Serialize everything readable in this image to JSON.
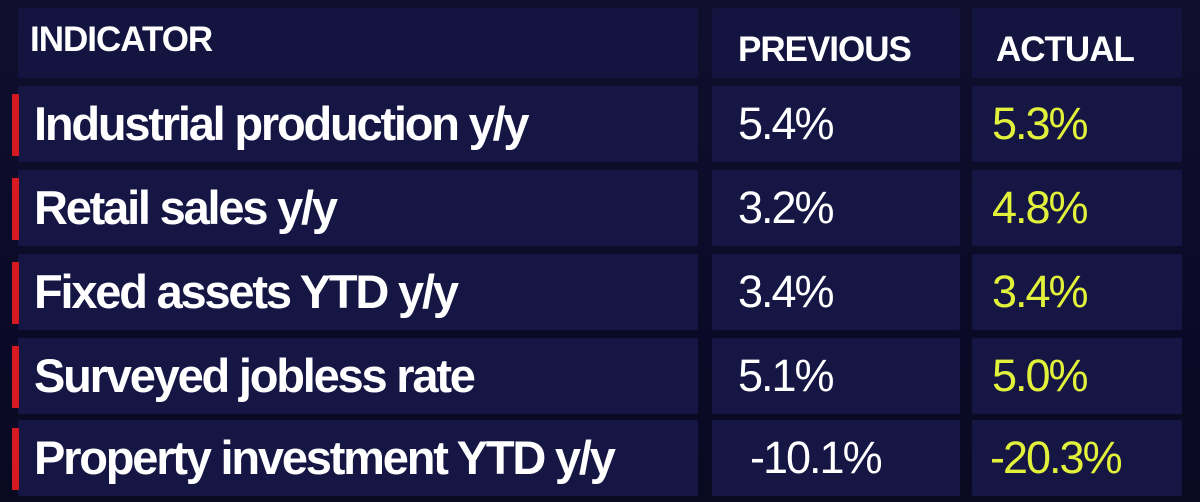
{
  "colors": {
    "background": "#0b0b28",
    "cell": "#161645",
    "accent_red": "#d71921",
    "text_white": "#ffffff",
    "actual_yellow": "#e2f23a"
  },
  "table": {
    "headers": {
      "indicator": "INDICATOR",
      "previous": "PREVIOUS",
      "actual": "ACTUAL"
    },
    "rows": [
      {
        "indicator": "Industrial production y/y",
        "previous": "5.4%",
        "actual": "5.3%"
      },
      {
        "indicator": "Retail sales y/y",
        "previous": "3.2%",
        "actual": "4.8%"
      },
      {
        "indicator": "Fixed assets YTD y/y",
        "previous": "3.4%",
        "actual": "3.4%"
      },
      {
        "indicator": "Surveyed jobless rate",
        "previous": "5.1%",
        "actual": "5.0%"
      },
      {
        "indicator": "Property investment YTD y/y",
        "previous": "-10.1%",
        "actual": "-20.3%"
      }
    ]
  }
}
